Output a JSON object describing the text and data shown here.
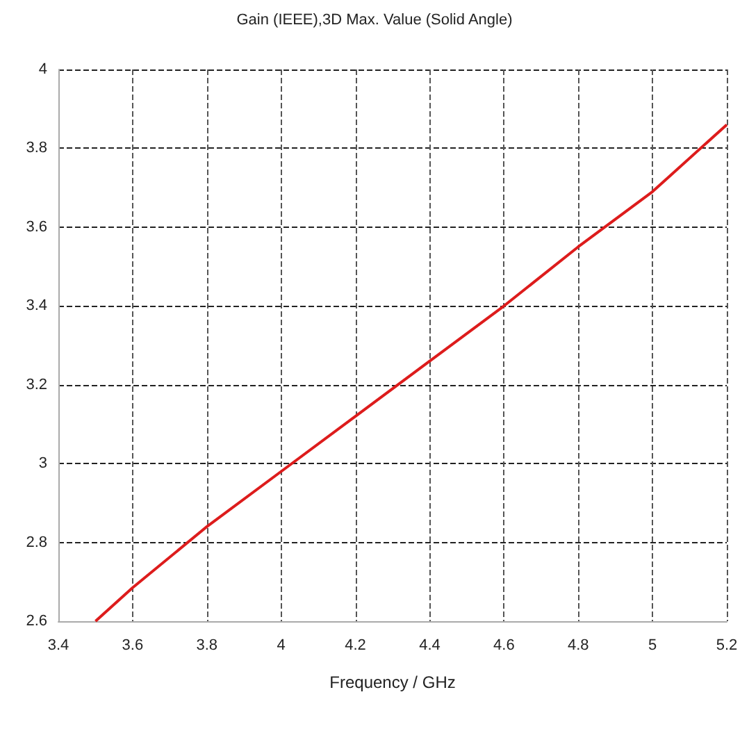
{
  "chart_data": {
    "type": "line",
    "title": "Gain (IEEE),3D Max. Value (Solid Angle)",
    "xlabel": "Frequency / GHz",
    "x": [
      3.5,
      3.6,
      3.8,
      4.0,
      4.2,
      4.4,
      4.6,
      4.8,
      5.0,
      5.2
    ],
    "series": [
      {
        "color": "#dd1c1c",
        "values": [
          2.6,
          2.685,
          2.84,
          2.98,
          3.12,
          3.26,
          3.4,
          3.55,
          3.69,
          3.86
        ]
      }
    ],
    "xlim": [
      3.4,
      5.2
    ],
    "xticks": [
      3.4,
      3.6,
      3.8,
      4,
      4.2,
      4.4,
      4.6,
      4.8,
      5,
      5.2
    ],
    "ylim": [
      2.6,
      4
    ],
    "yticks": [
      2.6,
      2.8,
      3,
      3.2,
      3.4,
      3.6,
      3.8,
      4
    ],
    "grid": true,
    "marker": "none",
    "line_style": "solid"
  }
}
